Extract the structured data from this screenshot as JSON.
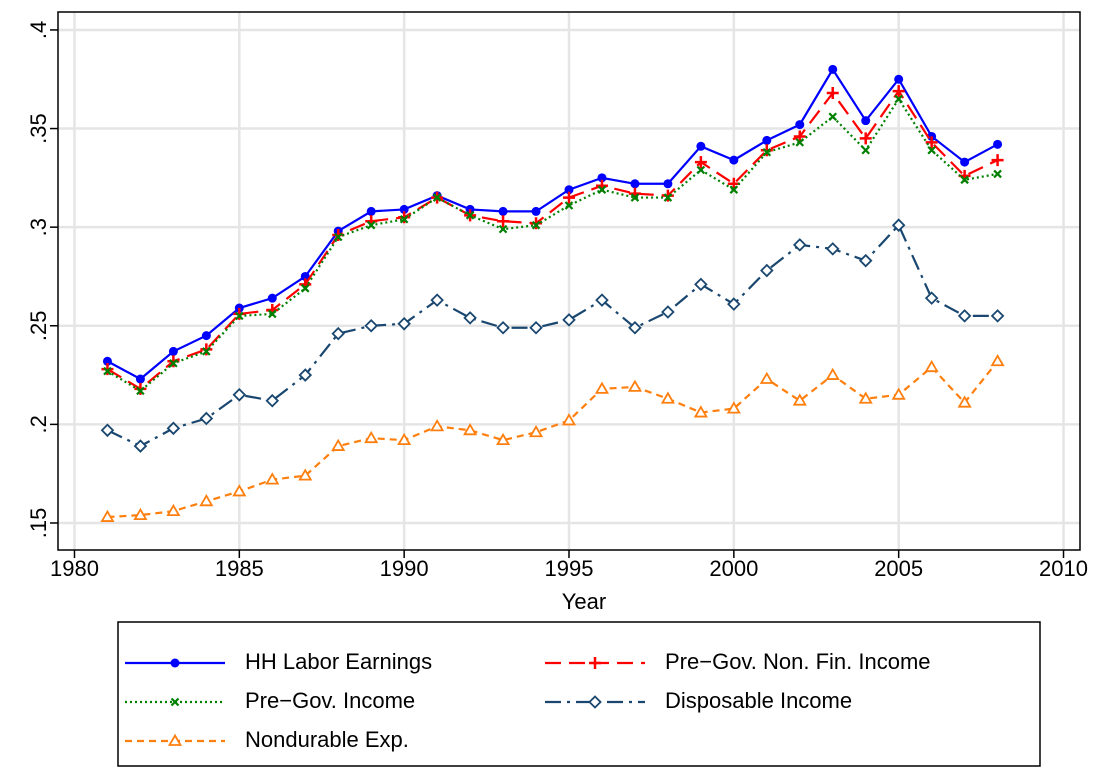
{
  "chart_data": {
    "type": "line",
    "xlabel": "Year",
    "x": [
      1981,
      1982,
      1983,
      1984,
      1985,
      1986,
      1987,
      1988,
      1989,
      1990,
      1991,
      1992,
      1993,
      1994,
      1995,
      1996,
      1997,
      1998,
      1999,
      2000,
      2001,
      2002,
      2003,
      2004,
      2005,
      2006,
      2007,
      2008
    ],
    "series": [
      {
        "name": "HH Labor Earnings",
        "color": "#0000ff",
        "dash": "none",
        "marker": "circle",
        "values": [
          0.232,
          0.223,
          0.237,
          0.245,
          0.259,
          0.264,
          0.275,
          0.298,
          0.308,
          0.309,
          0.316,
          0.309,
          0.308,
          0.308,
          0.319,
          0.325,
          0.322,
          0.322,
          0.341,
          0.334,
          0.344,
          0.352,
          0.38,
          0.354,
          0.375,
          0.346,
          0.333,
          0.342
        ]
      },
      {
        "name": "Pre−Gov. Non. Fin. Income",
        "color": "#ff0000",
        "dash": "16,8",
        "marker": "plus",
        "values": [
          0.228,
          0.218,
          0.232,
          0.238,
          0.256,
          0.258,
          0.271,
          0.296,
          0.303,
          0.305,
          0.315,
          0.306,
          0.303,
          0.302,
          0.315,
          0.321,
          0.317,
          0.316,
          0.333,
          0.322,
          0.339,
          0.346,
          0.368,
          0.345,
          0.369,
          0.343,
          0.326,
          0.334
        ]
      },
      {
        "name": "Pre−Gov. Income",
        "color": "#008000",
        "dash": "2,3",
        "marker": "x",
        "values": [
          0.227,
          0.217,
          0.231,
          0.237,
          0.255,
          0.256,
          0.269,
          0.295,
          0.301,
          0.304,
          0.315,
          0.306,
          0.299,
          0.301,
          0.311,
          0.319,
          0.315,
          0.315,
          0.329,
          0.319,
          0.338,
          0.343,
          0.356,
          0.339,
          0.365,
          0.339,
          0.324,
          0.327
        ]
      },
      {
        "name": "Disposable Income",
        "color": "#1a476f",
        "dash": "16,6,3,6",
        "marker": "diamond",
        "values": [
          0.197,
          0.189,
          0.198,
          0.203,
          0.215,
          0.212,
          0.225,
          0.246,
          0.25,
          0.251,
          0.263,
          0.254,
          0.249,
          0.249,
          0.253,
          0.263,
          0.249,
          0.257,
          0.271,
          0.261,
          0.278,
          0.291,
          0.289,
          0.283,
          0.301,
          0.264,
          0.255,
          0.255
        ]
      },
      {
        "name": "Nondurable Exp.",
        "color": "#ff7f0e",
        "dash": "7,5",
        "marker": "triangle",
        "values": [
          0.153,
          0.154,
          0.156,
          0.161,
          0.166,
          0.172,
          0.174,
          0.189,
          0.193,
          0.192,
          0.199,
          0.197,
          0.192,
          0.196,
          0.202,
          0.218,
          0.219,
          0.213,
          0.206,
          0.208,
          0.223,
          0.212,
          0.225,
          0.213,
          0.215,
          0.229,
          0.211,
          0.232
        ]
      }
    ],
    "xlim": [
      1979.5,
      2010.5
    ],
    "xticks": [
      1980,
      1985,
      1990,
      1995,
      2000,
      2005,
      2010
    ],
    "ylim": [
      0.1363,
      0.4091
    ],
    "yticks": [
      {
        "value": 0.15,
        "label": ".15"
      },
      {
        "value": 0.2,
        "label": ".2"
      },
      {
        "value": 0.25,
        "label": ".25"
      },
      {
        "value": 0.3,
        "label": ".3"
      },
      {
        "value": 0.35,
        "label": ".35"
      },
      {
        "value": 0.4,
        "label": ".4"
      }
    ],
    "grid": true,
    "legend_position": "bottom"
  }
}
